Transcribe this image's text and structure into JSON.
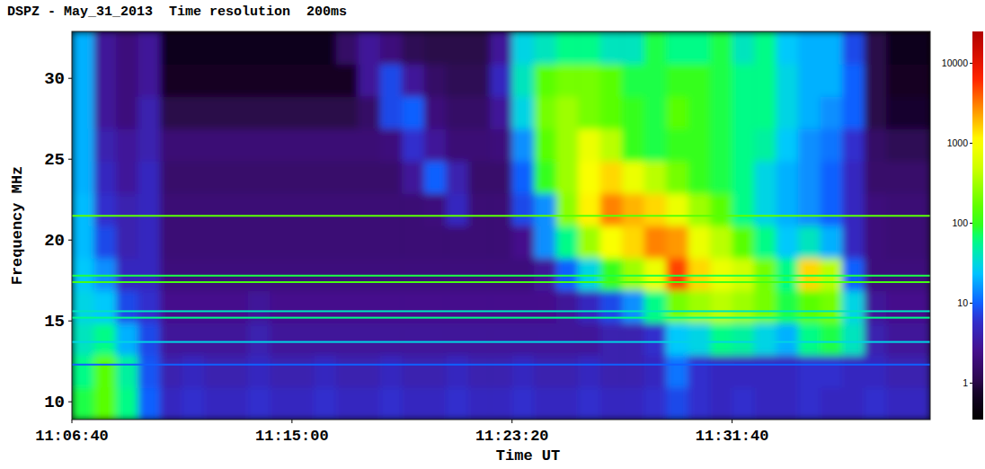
{
  "chart_data": {
    "type": "heatmap",
    "title": "DSPZ - May_31_2013  Time resolution  200ms",
    "x_label": "Time UT",
    "y_label": "Frequency MHz",
    "xlim": [
      40000,
      41950
    ],
    "xticks": [
      {
        "value": 40000,
        "label": "11:06:40"
      },
      {
        "value": 40500,
        "label": "11:15:00"
      },
      {
        "value": 41000,
        "label": "11:23:20"
      },
      {
        "value": 41500,
        "label": "11:31:40"
      }
    ],
    "ylim": [
      8.9,
      32.9
    ],
    "yticks": [
      10,
      15,
      20,
      25,
      30
    ],
    "x_bins": [
      40000,
      40050,
      40100,
      40150,
      40200,
      40250,
      40300,
      40350,
      40400,
      40450,
      40500,
      40550,
      40600,
      40650,
      40700,
      40750,
      40800,
      40850,
      40900,
      40950,
      41000,
      41050,
      41100,
      41150,
      41200,
      41250,
      41300,
      41350,
      41400,
      41450,
      41500,
      41550,
      41600,
      41650,
      41700,
      41750,
      41800,
      41850,
      41900,
      41950
    ],
    "y_bins": [
      8.9,
      10.9,
      12.9,
      14.9,
      16.9,
      18.9,
      20.9,
      22.9,
      24.9,
      26.9,
      28.9,
      30.9,
      32.9
    ],
    "values": [
      [
        80,
        150,
        60,
        10,
        5,
        6,
        5,
        5,
        6,
        5,
        5,
        6,
        5,
        5,
        6,
        5,
        5,
        6,
        5,
        5,
        6,
        5,
        5,
        6,
        5,
        5,
        6,
        8,
        6,
        5,
        6,
        5,
        5,
        6,
        5,
        5,
        6,
        5,
        5
      ],
      [
        60,
        150,
        50,
        9,
        4,
        5,
        4,
        4,
        5,
        4,
        4,
        5,
        4,
        4,
        5,
        4,
        4,
        5,
        4,
        4,
        5,
        4,
        4,
        5,
        4,
        4,
        5,
        12,
        6,
        5,
        5,
        5,
        5,
        6,
        6,
        5,
        5,
        4,
        4
      ],
      [
        40,
        60,
        20,
        8,
        3,
        3,
        3,
        3,
        4,
        3,
        3,
        3,
        3,
        3,
        3,
        3,
        3,
        3,
        3,
        3,
        3,
        3,
        3,
        3,
        4,
        4,
        6,
        25,
        30,
        60,
        50,
        30,
        20,
        60,
        80,
        40,
        4,
        3,
        3
      ],
      [
        30,
        25,
        8,
        6,
        2.5,
        2.5,
        2.5,
        2.5,
        3,
        2.5,
        2.5,
        2.5,
        2.5,
        2.5,
        2.5,
        2.5,
        2.5,
        2.5,
        2.5,
        2.5,
        2.5,
        2.5,
        3,
        5,
        8,
        15,
        60,
        200,
        300,
        400,
        300,
        200,
        80,
        150,
        200,
        30,
        3,
        2.5,
        2.5
      ],
      [
        25,
        15,
        5,
        5,
        2,
        2,
        2,
        2,
        2,
        2,
        2,
        2,
        2,
        2,
        2,
        2,
        2,
        2,
        2,
        2,
        2,
        3,
        10,
        30,
        100,
        300,
        800,
        5000,
        1500,
        800,
        500,
        200,
        60,
        1500,
        400,
        10,
        2,
        2,
        2
      ],
      [
        22,
        8,
        4,
        5,
        1.8,
        1.8,
        1.8,
        1.8,
        1.8,
        1.8,
        1.8,
        1.8,
        1.8,
        1.8,
        1.8,
        1.8,
        1.8,
        1.8,
        1.8,
        1.8,
        2.5,
        15,
        60,
        300,
        1000,
        1500,
        3000,
        2500,
        800,
        400,
        150,
        60,
        25,
        40,
        20,
        5,
        2,
        1.8,
        1.8
      ],
      [
        22,
        6,
        4,
        5,
        1.8,
        1.8,
        1.8,
        1.8,
        1.8,
        1.8,
        1.8,
        1.8,
        1.8,
        1.8,
        1.8,
        1.8,
        2,
        5,
        1.8,
        1.8,
        8,
        15,
        250,
        1200,
        3000,
        2000,
        1500,
        800,
        300,
        150,
        60,
        30,
        20,
        15,
        10,
        5,
        2,
        1.8,
        1.8
      ],
      [
        20,
        5,
        3,
        5,
        1.6,
        1.6,
        1.6,
        1.6,
        1.6,
        1.6,
        1.6,
        1.6,
        1.6,
        1.6,
        1.6,
        3,
        10,
        4,
        1.6,
        1.6,
        10,
        100,
        300,
        1000,
        1500,
        800,
        400,
        200,
        100,
        80,
        60,
        30,
        20,
        15,
        10,
        5,
        1.6,
        1.6,
        1.6
      ],
      [
        20,
        4,
        3,
        4,
        1.8,
        1.8,
        1.8,
        1.8,
        1.8,
        1.8,
        1.8,
        1.8,
        1.8,
        1.8,
        2,
        6,
        3,
        1.8,
        1.8,
        2,
        15,
        150,
        300,
        800,
        400,
        100,
        80,
        100,
        100,
        80,
        60,
        50,
        25,
        15,
        12,
        6,
        1.5,
        1.2,
        1.2
      ],
      [
        20,
        3,
        2,
        4,
        1,
        1,
        1,
        1,
        1,
        1,
        1,
        1,
        1,
        1.5,
        8,
        10,
        2,
        1.5,
        1.5,
        3,
        30,
        200,
        300,
        200,
        150,
        100,
        80,
        150,
        100,
        80,
        60,
        60,
        30,
        20,
        15,
        10,
        1,
        0.8,
        0.8
      ],
      [
        20,
        3,
        2,
        3,
        0.7,
        0.7,
        0.7,
        0.7,
        0.7,
        0.7,
        0.7,
        0.7,
        0.7,
        3,
        8,
        3,
        1.5,
        1.2,
        1.2,
        5,
        40,
        150,
        200,
        200,
        150,
        80,
        80,
        100,
        100,
        80,
        60,
        60,
        30,
        20,
        20,
        10,
        1,
        0.7,
        0.7
      ],
      [
        20,
        3,
        2,
        3,
        0.6,
        0.6,
        0.6,
        0.6,
        0.6,
        0.6,
        0.6,
        0.6,
        1.5,
        3,
        2,
        1.2,
        1,
        1,
        1,
        3,
        30,
        40,
        60,
        60,
        40,
        40,
        80,
        60,
        60,
        80,
        40,
        60,
        25,
        20,
        20,
        8,
        1,
        0.6,
        0.6
      ]
    ],
    "interference": [
      {
        "frequency": 21.5,
        "intensity": 150
      },
      {
        "frequency": 17.8,
        "intensity": 80
      },
      {
        "frequency": 17.4,
        "intensity": 120
      },
      {
        "frequency": 15.6,
        "intensity": 40
      },
      {
        "frequency": 15.2,
        "intensity": 60
      },
      {
        "frequency": 13.7,
        "intensity": 30
      },
      {
        "frequency": 12.3,
        "intensity": 10
      }
    ],
    "colorbar": {
      "range": [
        0.35,
        25000
      ],
      "ticks": [
        1,
        10,
        100,
        1000,
        10000
      ],
      "log": true
    }
  }
}
